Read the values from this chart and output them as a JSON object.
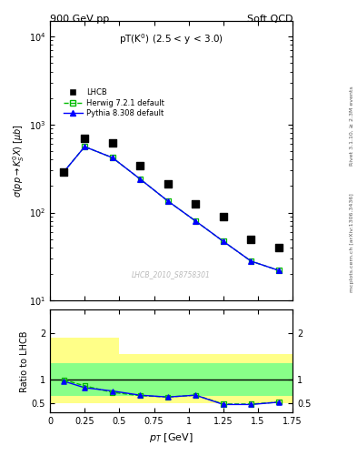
{
  "title_top_left": "900 GeV pp",
  "title_top_right": "Soft QCD",
  "panel_title": "pT(K) (2.5 < y < 3.0)",
  "ylabel_main": "#sigma(pp#rightarrowK^{0}_{S} X) [mu b]",
  "ylabel_ratio": "Ratio to LHCB",
  "xlabel": "p_{T} [GeV]",
  "watermark": "LHCB_2010_S8758301",
  "right_label_top": "Rivet 3.1.10, >= 2.3M events",
  "right_label_bottom": "mcplots.cern.ch [arXiv:1306.3436]",
  "lhcb_x": [
    0.1,
    0.25,
    0.45,
    0.65,
    0.85,
    1.05,
    1.25,
    1.45,
    1.65
  ],
  "lhcb_y": [
    290,
    700,
    620,
    340,
    210,
    125,
    90,
    50,
    40
  ],
  "herwig_x": [
    0.1,
    0.25,
    0.45,
    0.65,
    0.85,
    1.05,
    1.25,
    1.45,
    1.65
  ],
  "herwig_y": [
    290,
    560,
    420,
    240,
    135,
    80,
    47,
    28,
    22
  ],
  "pythia_x": [
    0.1,
    0.25,
    0.45,
    0.65,
    0.85,
    1.05,
    1.25,
    1.45,
    1.65
  ],
  "pythia_y": [
    290,
    560,
    420,
    240,
    135,
    80,
    47,
    28,
    22
  ],
  "ratio_herwig_x": [
    0.1,
    0.25,
    0.45,
    0.65,
    0.85,
    1.05,
    1.25,
    1.45,
    1.65
  ],
  "ratio_herwig_y": [
    1.0,
    0.87,
    0.73,
    0.66,
    0.63,
    0.67,
    0.48,
    0.48,
    0.52
  ],
  "ratio_pythia_x": [
    0.1,
    0.25,
    0.45,
    0.65,
    0.85,
    1.05,
    1.25,
    1.45,
    1.65
  ],
  "ratio_pythia_y": [
    0.97,
    0.83,
    0.76,
    0.67,
    0.63,
    0.67,
    0.47,
    0.47,
    0.52
  ],
  "band_yellow_edges": [
    0.0,
    0.3,
    0.5,
    1.75
  ],
  "band_yellow_hi": [
    1.9,
    1.9,
    1.55,
    1.55
  ],
  "band_yellow_lo": [
    0.5,
    0.5,
    0.5,
    0.5
  ],
  "band_green_edges": [
    0.0,
    0.3,
    0.5,
    1.75
  ],
  "band_green_hi": [
    1.35,
    1.35,
    1.35,
    1.35
  ],
  "band_green_lo": [
    0.65,
    0.65,
    0.65,
    0.65
  ],
  "ylim_main": [
    10,
    15000
  ],
  "ylim_ratio": [
    0.3,
    2.5
  ],
  "xlim": [
    0.0,
    1.75
  ],
  "color_lhcb": "#000000",
  "color_herwig": "#00bb00",
  "color_pythia": "#0000ff",
  "color_yellow": "#ffff88",
  "color_green": "#88ff88",
  "legend_labels": [
    "LHCB",
    "Herwig 7.2.1 default",
    "Pythia 8.308 default"
  ]
}
